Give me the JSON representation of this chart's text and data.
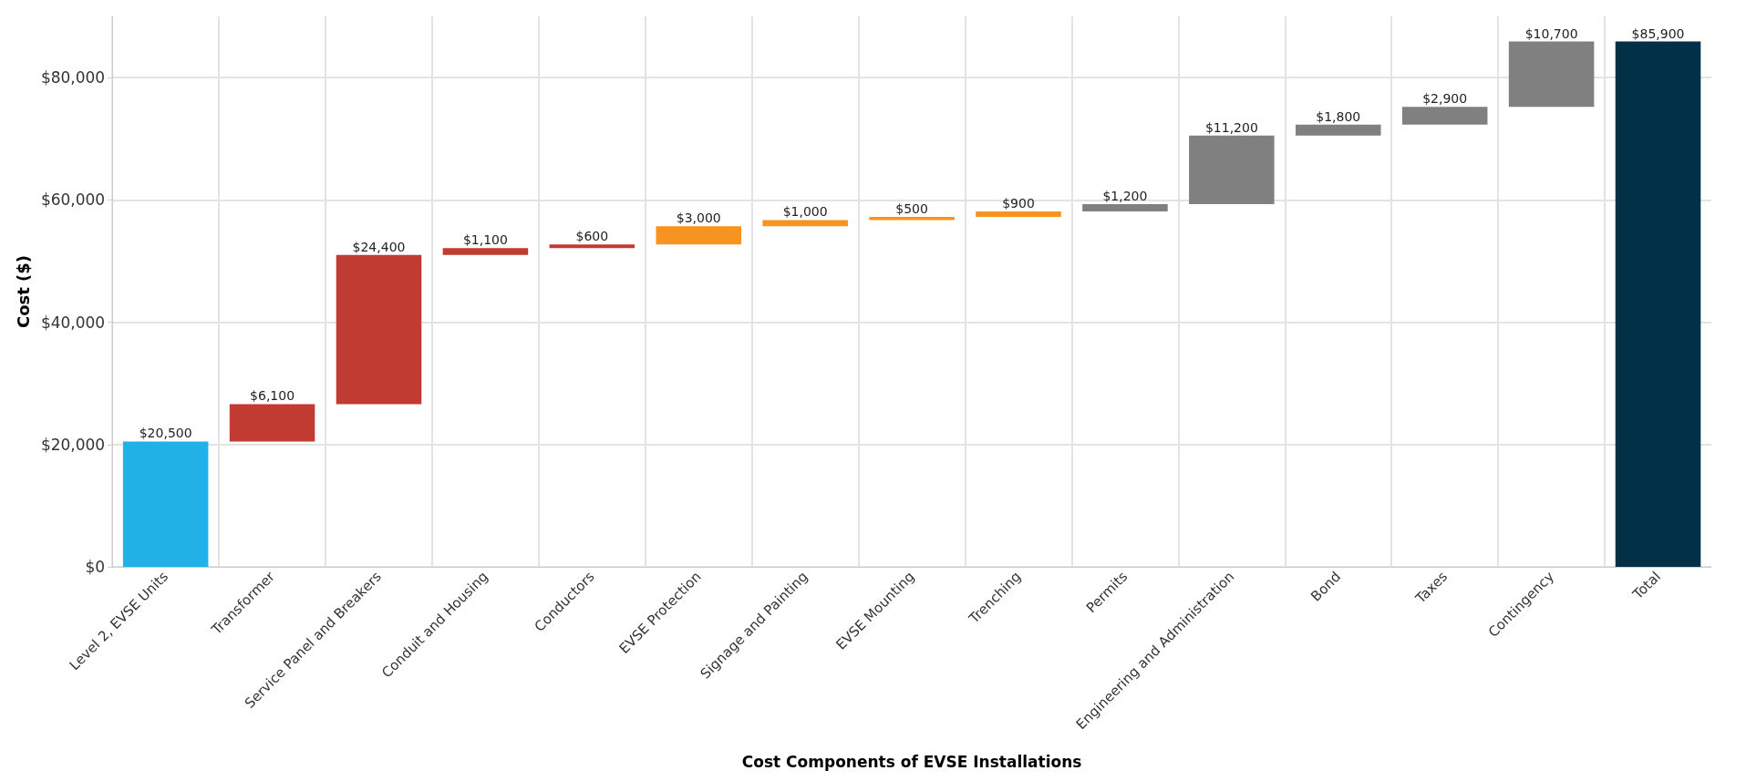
{
  "chart_data": {
    "type": "bar",
    "xlabel": "Cost Components of EVSE Installations",
    "ylabel": "Cost ($)",
    "categories": [
      "Level 2, EVSE Units",
      "Transformer",
      "Service Panel and Breakers",
      "Conduit and Housing",
      "Conductors",
      "EVSE Protection",
      "Signage and Painting",
      "EVSE Mounting",
      "Trenching",
      "Permits",
      "Engineering and Administration",
      "Bond",
      "Taxes",
      "Contingency",
      "Total"
    ],
    "values": [
      20500,
      6100,
      24400,
      1100,
      600,
      3000,
      1000,
      500,
      900,
      1200,
      11200,
      1800,
      2900,
      10700,
      85900
    ],
    "base": [
      0,
      20500,
      26600,
      51000,
      52100,
      52700,
      55700,
      56700,
      57200,
      58100,
      59300,
      70500,
      72300,
      75200,
      0
    ],
    "colors": [
      "#21b1e6",
      "#c23b33",
      "#c23b33",
      "#c23b33",
      "#c23b33",
      "#f79420",
      "#f79420",
      "#f79420",
      "#f79420",
      "#808080",
      "#808080",
      "#808080",
      "#808080",
      "#808080",
      "#023047"
    ],
    "value_labels": [
      "$20,500",
      "$6,100",
      "$24,400",
      "$1,100",
      "$600",
      "$3,000",
      "$1,000",
      "$500",
      "$900",
      "$1,200",
      "$11,200",
      "$1,800",
      "$2,900",
      "$10,700",
      "$85,900"
    ],
    "ylim": [
      0,
      90000
    ],
    "yticks": [
      {
        "value": 0,
        "label": "$0"
      },
      {
        "value": 20000,
        "label": "$20,000"
      },
      {
        "value": 40000,
        "label": "$40,000"
      },
      {
        "value": 60000,
        "label": "$60,000"
      },
      {
        "value": 80000,
        "label": "$80,000"
      }
    ],
    "grid": true
  }
}
